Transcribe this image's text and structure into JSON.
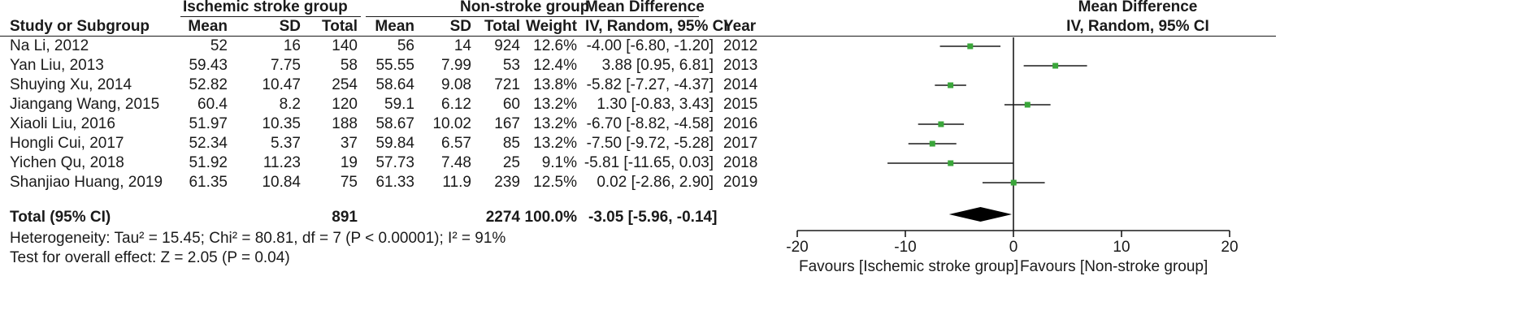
{
  "headers": {
    "group1": "Ischemic stroke group",
    "group2": "Non-stroke group",
    "md_top": "Mean Difference",
    "md_sub": "IV, Random, 95% CI",
    "plot_top": "Mean Difference",
    "plot_sub": "IV, Random, 95% CI",
    "study": "Study or Subgroup",
    "mean": "Mean",
    "sd": "SD",
    "total": "Total",
    "weight": "Weight",
    "year": "Year"
  },
  "studies": [
    {
      "name": "Na Li, 2012",
      "m1": "52",
      "sd1": "16",
      "n1": "140",
      "m2": "56",
      "sd2": "14",
      "n2": "924",
      "weight": "12.6%",
      "ci": "-4.00 [-6.80, -1.20]",
      "year": "2012"
    },
    {
      "name": "Yan Liu, 2013",
      "m1": "59.43",
      "sd1": "7.75",
      "n1": "58",
      "m2": "55.55",
      "sd2": "7.99",
      "n2": "53",
      "weight": "12.4%",
      "ci": "3.88 [0.95, 6.81]",
      "year": "2013"
    },
    {
      "name": "Shuying Xu, 2014",
      "m1": "52.82",
      "sd1": "10.47",
      "n1": "254",
      "m2": "58.64",
      "sd2": "9.08",
      "n2": "721",
      "weight": "13.8%",
      "ci": "-5.82 [-7.27, -4.37]",
      "year": "2014"
    },
    {
      "name": "Jiangang Wang, 2015",
      "m1": "60.4",
      "sd1": "8.2",
      "n1": "120",
      "m2": "59.1",
      "sd2": "6.12",
      "n2": "60",
      "weight": "13.2%",
      "ci": "1.30 [-0.83, 3.43]",
      "year": "2015"
    },
    {
      "name": "Xiaoli Liu, 2016",
      "m1": "51.97",
      "sd1": "10.35",
      "n1": "188",
      "m2": "58.67",
      "sd2": "10.02",
      "n2": "167",
      "weight": "13.2%",
      "ci": "-6.70 [-8.82, -4.58]",
      "year": "2016"
    },
    {
      "name": "Hongli Cui, 2017",
      "m1": "52.34",
      "sd1": "5.37",
      "n1": "37",
      "m2": "59.84",
      "sd2": "6.57",
      "n2": "85",
      "weight": "13.2%",
      "ci": "-7.50 [-9.72, -5.28]",
      "year": "2017"
    },
    {
      "name": "Yichen Qu, 2018",
      "m1": "51.92",
      "sd1": "11.23",
      "n1": "19",
      "m2": "57.73",
      "sd2": "7.48",
      "n2": "25",
      "weight": "9.1%",
      "ci": "-5.81 [-11.65, 0.03]",
      "year": "2018"
    },
    {
      "name": "Shanjiao Huang, 2019",
      "m1": "61.35",
      "sd1": "10.84",
      "n1": "75",
      "m2": "61.33",
      "sd2": "11.9",
      "n2": "239",
      "weight": "12.5%",
      "ci": "0.02 [-2.86, 2.90]",
      "year": "2019"
    }
  ],
  "total": {
    "label": "Total (95% CI)",
    "n1": "891",
    "n2": "2274",
    "weight": "100.0%",
    "ci": "-3.05 [-5.96, -0.14]"
  },
  "heterogeneity": "Heterogeneity: Tau² = 15.45; Chi² = 80.81, df = 7 (P < 0.00001); I² = 91%",
  "overall_effect": "Test for overall effect: Z = 2.05 (P = 0.04)",
  "favours_left": "Favours [Ischemic stroke group]",
  "favours_right": "Favours [Non-stroke group]",
  "colors": {
    "marker": "#3aa63a",
    "diamond": "#000000",
    "text": "#1a1a1a"
  },
  "chart_data": {
    "type": "forest",
    "xlim": [
      -20,
      20
    ],
    "xticks": [
      -20,
      -10,
      0,
      10,
      20
    ],
    "points": [
      {
        "study": "Na Li, 2012",
        "md": -4.0,
        "lo": -6.8,
        "hi": -1.2
      },
      {
        "study": "Yan Liu, 2013",
        "md": 3.88,
        "lo": 0.95,
        "hi": 6.81
      },
      {
        "study": "Shuying Xu, 2014",
        "md": -5.82,
        "lo": -7.27,
        "hi": -4.37
      },
      {
        "study": "Jiangang Wang, 2015",
        "md": 1.3,
        "lo": -0.83,
        "hi": 3.43
      },
      {
        "study": "Xiaoli Liu, 2016",
        "md": -6.7,
        "lo": -8.82,
        "hi": -4.58
      },
      {
        "study": "Hongli Cui, 2017",
        "md": -7.5,
        "lo": -9.72,
        "hi": -5.28
      },
      {
        "study": "Yichen Qu, 2018",
        "md": -5.81,
        "lo": -11.65,
        "hi": 0.03
      },
      {
        "study": "Shanjiao Huang, 2019",
        "md": 0.02,
        "lo": -2.86,
        "hi": 2.9
      }
    ],
    "pooled": {
      "md": -3.05,
      "lo": -5.96,
      "hi": -0.14
    }
  }
}
